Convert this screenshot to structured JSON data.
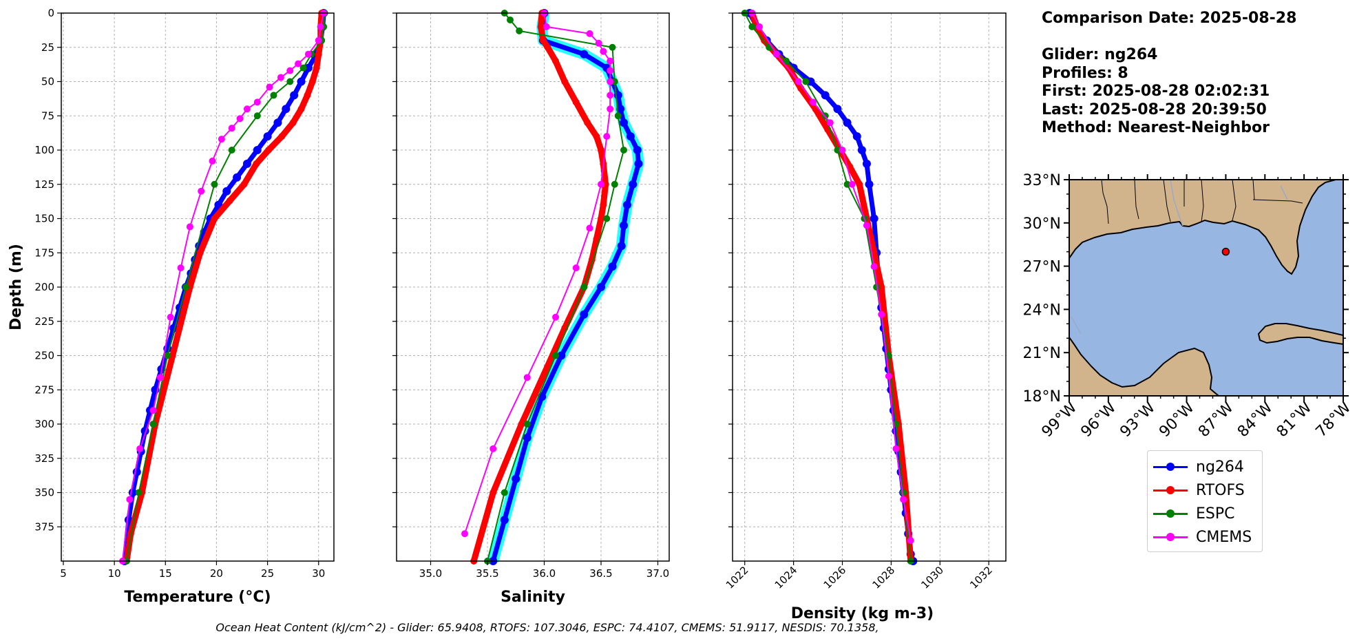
{
  "info": {
    "comparison_date": "Comparison Date: 2025-08-28",
    "glider": "Glider: ng264",
    "profiles": "Profiles: 8",
    "first": "First: 2025-08-28 02:02:31",
    "last": "Last: 2025-08-28 20:39:50",
    "method": "Method: Nearest-Neighbor"
  },
  "footer": "Ocean Heat Content (kJ/cm^2) - Glider: 65.9408,  RTOFS: 107.3046,  ESPC: 74.4107,  CMEMS: 51.9117,  NESDIS: 70.1358,",
  "legend": [
    {
      "label": "ng264",
      "color": "#0000ff"
    },
    {
      "label": "RTOFS",
      "color": "#ff0000"
    },
    {
      "label": "ESPC",
      "color": "#008000"
    },
    {
      "label": "CMEMS",
      "color": "#ff00ff"
    }
  ],
  "chart_data": [
    {
      "type": "line",
      "xlabel": "Temperature (°C)",
      "ylabel": "Depth (m)",
      "xlim": [
        4.8,
        31.5
      ],
      "ylim": [
        400,
        0
      ],
      "xticks": [
        5,
        10,
        15,
        20,
        25,
        30
      ],
      "yticks": [
        0,
        25,
        50,
        75,
        100,
        125,
        150,
        175,
        200,
        225,
        250,
        275,
        300,
        325,
        350,
        375
      ],
      "grid": true,
      "series": [
        {
          "name": "ng264",
          "color": "#0000ff",
          "x": [
            30.5,
            30.4,
            30.2,
            29.8,
            29.0,
            28.3,
            27.6,
            26.8,
            26.0,
            25.0,
            24.0,
            23.0,
            22.0,
            21.0,
            20.2,
            19.4,
            18.8,
            18.3,
            17.9,
            17.5,
            17.0,
            16.4,
            15.8,
            15.2,
            14.6,
            14.0,
            13.5,
            13.0,
            12.6,
            12.2,
            11.8,
            11.4,
            11.0
          ],
          "y": [
            0,
            10,
            20,
            30,
            40,
            50,
            60,
            70,
            80,
            90,
            100,
            110,
            120,
            130,
            140,
            150,
            160,
            170,
            180,
            190,
            200,
            215,
            230,
            245,
            260,
            275,
            290,
            305,
            320,
            335,
            350,
            370,
            400
          ]
        },
        {
          "name": "RTOFS",
          "color": "#ff0000",
          "x": [
            30.3,
            30.2,
            30.2,
            30.0,
            29.8,
            29.4,
            28.9,
            28.3,
            27.5,
            26.4,
            25.1,
            23.9,
            22.7,
            21.3,
            19.8,
            18.4,
            17.4,
            15.7,
            14.0,
            12.7,
            11.6,
            11.2
          ],
          "y": [
            0,
            10,
            20,
            30,
            40,
            50,
            60,
            70,
            80,
            90,
            100,
            110,
            125,
            137,
            150,
            175,
            200,
            250,
            300,
            350,
            380,
            400
          ]
        },
        {
          "name": "ESPC",
          "color": "#008000",
          "x": [
            30.6,
            30.5,
            30.3,
            29.3,
            28.5,
            27.2,
            25.6,
            24.0,
            21.5,
            19.8,
            17.0,
            15.2,
            13.8,
            12.4,
            11.2
          ],
          "y": [
            0,
            10,
            20,
            30,
            40,
            50,
            60,
            75,
            100,
            125,
            200,
            250,
            300,
            350,
            400
          ]
        },
        {
          "name": "CMEMS",
          "color": "#ff00ff",
          "x": [
            30.5,
            30.2,
            30.0,
            29.0,
            28.0,
            27.2,
            26.3,
            25.2,
            24.0,
            23.0,
            22.3,
            21.5,
            20.5,
            19.6,
            18.5,
            17.4,
            16.5,
            15.5,
            14.5,
            13.8,
            12.5,
            11.5,
            10.8
          ],
          "y": [
            0,
            10,
            20,
            30,
            37,
            42,
            47,
            54,
            65,
            70,
            77,
            84,
            92,
            108,
            130,
            156,
            186,
            222,
            266,
            290,
            318,
            355,
            400
          ]
        }
      ]
    },
    {
      "type": "line",
      "xlabel": "Salinity",
      "ylabel": "",
      "xlim": [
        34.7,
        37.1
      ],
      "ylim": [
        400,
        0
      ],
      "xticks": [
        35.0,
        35.5,
        36.0,
        36.5,
        37.0
      ],
      "yticks": [
        0,
        25,
        50,
        75,
        100,
        125,
        150,
        175,
        200,
        225,
        250,
        275,
        300,
        325,
        350,
        375
      ],
      "grid": true,
      "series": [
        {
          "name": "ng264",
          "color": "#0000ff",
          "x": [
            36.0,
            35.98,
            35.99,
            36.35,
            36.55,
            36.6,
            36.65,
            36.67,
            36.7,
            36.76,
            36.82,
            36.83,
            36.78,
            36.73,
            36.7,
            36.68,
            36.6,
            36.5,
            36.35,
            36.15,
            35.98,
            35.85,
            35.75,
            35.65,
            35.55
          ],
          "y": [
            0,
            10,
            20,
            30,
            40,
            50,
            60,
            70,
            80,
            90,
            100,
            110,
            125,
            140,
            155,
            170,
            185,
            200,
            220,
            250,
            280,
            310,
            340,
            370,
            400
          ]
        },
        {
          "name": "RTOFS",
          "color": "#ff0000",
          "x": [
            35.98,
            35.97,
            35.99,
            36.03,
            36.1,
            36.18,
            36.28,
            36.38,
            36.46,
            36.5,
            36.52,
            36.54,
            36.52,
            36.5,
            36.46,
            36.42,
            36.35,
            36.18,
            35.8,
            35.55,
            35.38
          ],
          "y": [
            0,
            10,
            20,
            25,
            35,
            50,
            65,
            80,
            90,
            100,
            110,
            125,
            140,
            150,
            165,
            180,
            200,
            230,
            300,
            350,
            400
          ]
        },
        {
          "name": "ESPC",
          "color": "#008000",
          "x": [
            35.65,
            35.7,
            35.78,
            36.6,
            36.62,
            36.65,
            36.7,
            36.62,
            36.55,
            36.35,
            36.1,
            35.85,
            35.65,
            35.5
          ],
          "y": [
            0,
            5,
            13,
            25,
            50,
            75,
            100,
            125,
            150,
            200,
            250,
            300,
            350,
            400
          ]
        },
        {
          "name": "CMEMS",
          "color": "#ff00ff",
          "x": [
            36.0,
            36.02,
            36.4,
            36.48,
            36.52,
            36.58,
            36.58,
            36.58,
            36.58,
            36.58,
            36.55,
            36.5,
            36.4,
            36.28,
            36.1,
            35.85,
            35.55,
            35.3
          ],
          "y": [
            0,
            10,
            15,
            22,
            28,
            35,
            42,
            50,
            60,
            70,
            90,
            125,
            157,
            186,
            222,
            266,
            318,
            380
          ]
        }
      ]
    },
    {
      "type": "line",
      "xlabel": "Density (kg m-3)",
      "ylabel": "",
      "xlim": [
        1021.5,
        1032.7
      ],
      "ylim": [
        400,
        0
      ],
      "xticks": [
        1022,
        1024,
        1026,
        1028,
        1030,
        1032
      ],
      "yticks": [
        0,
        25,
        50,
        75,
        100,
        125,
        150,
        175,
        200,
        225,
        250,
        275,
        300,
        325,
        350,
        375
      ],
      "grid": true,
      "series": [
        {
          "name": "ng264",
          "color": "#0000ff",
          "x": [
            1022.2,
            1022.5,
            1022.9,
            1023.4,
            1024.0,
            1024.7,
            1025.3,
            1025.8,
            1026.2,
            1026.6,
            1026.8,
            1027.0,
            1027.1,
            1027.3,
            1027.4,
            1027.5,
            1027.6,
            1027.7,
            1027.8,
            1027.9,
            1028.0,
            1028.1,
            1028.2,
            1028.3,
            1028.4,
            1028.5,
            1028.6,
            1028.7,
            1028.8,
            1028.9
          ],
          "y": [
            0,
            10,
            20,
            30,
            40,
            50,
            60,
            70,
            80,
            90,
            100,
            110,
            125,
            150,
            175,
            200,
            215,
            230,
            245,
            260,
            275,
            290,
            305,
            320,
            335,
            350,
            365,
            380,
            395,
            400
          ]
        },
        {
          "name": "RTOFS",
          "color": "#ff0000",
          "x": [
            1022.3,
            1022.5,
            1022.8,
            1023.3,
            1023.8,
            1024.3,
            1024.9,
            1025.4,
            1025.9,
            1026.3,
            1026.7,
            1027.0,
            1027.3,
            1027.6,
            1027.9,
            1028.3,
            1028.6,
            1028.8
          ],
          "y": [
            0,
            10,
            20,
            30,
            40,
            55,
            70,
            85,
            100,
            112,
            125,
            150,
            175,
            200,
            250,
            300,
            350,
            400
          ]
        },
        {
          "name": "ESPC",
          "color": "#008000",
          "x": [
            1022.0,
            1022.3,
            1023.0,
            1023.7,
            1024.5,
            1025.3,
            1025.8,
            1026.2,
            1026.9,
            1027.4,
            1027.9,
            1028.2,
            1028.5,
            1028.8
          ],
          "y": [
            0,
            10,
            25,
            35,
            50,
            75,
            100,
            125,
            150,
            200,
            250,
            300,
            350,
            400
          ]
        },
        {
          "name": "CMEMS",
          "color": "#ff00ff",
          "x": [
            1022.3,
            1022.6,
            1023.3,
            1024.2,
            1024.8,
            1025.5,
            1026.0,
            1026.4,
            1027.0,
            1027.3,
            1027.6,
            1027.9,
            1028.2,
            1028.5,
            1028.8
          ],
          "y": [
            0,
            10,
            30,
            50,
            65,
            80,
            100,
            125,
            155,
            185,
            220,
            265,
            318,
            355,
            385
          ]
        }
      ]
    }
  ],
  "map": {
    "lat_ticks": [
      "33°N",
      "30°N",
      "27°N",
      "24°N",
      "21°N",
      "18°N"
    ],
    "lon_ticks": [
      "99°W",
      "96°W",
      "93°W",
      "90°W",
      "87°W",
      "84°W",
      "81°W",
      "78°W"
    ],
    "land_color": "#d2b48c",
    "water_color": "#98b6e2",
    "marker": {
      "lat": 28.0,
      "lon": -87.0,
      "color": "#ff0000"
    }
  }
}
